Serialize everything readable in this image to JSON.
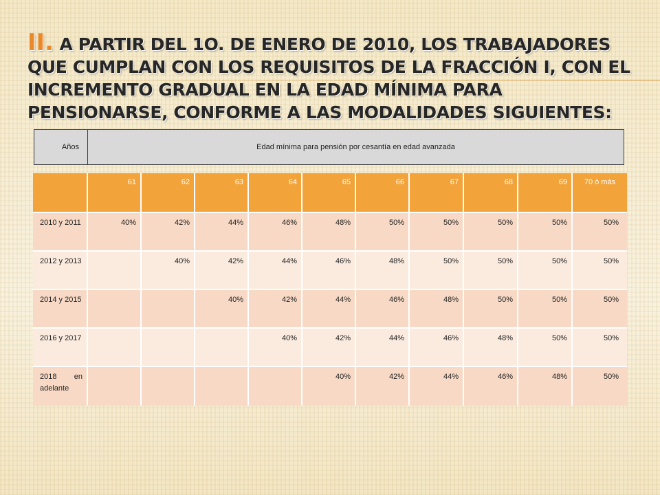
{
  "title": {
    "bullet": "II.",
    "text": "A partir del 1o. de enero de 2010, los trabajadores que cumplan con los requisitos de la fracción I, con el incremento gradual en la edad mínima para pensionarse, conforme a las modalidades siguientes:"
  },
  "header": {
    "years_label": "Años",
    "description": "Edad mínima para pensión por cesantía en edad avanzada"
  },
  "table": {
    "ages": [
      "61",
      "62",
      "63",
      "64",
      "65",
      "66",
      "67",
      "68",
      "69",
      "70 ó más"
    ],
    "rows": [
      {
        "period": "2010 y 2011",
        "values": [
          "40%",
          "42%",
          "44%",
          "46%",
          "48%",
          "50%",
          "50%",
          "50%",
          "50%",
          "50%"
        ]
      },
      {
        "period": "2012 y 2013",
        "values": [
          "",
          "40%",
          "42%",
          "44%",
          "46%",
          "48%",
          "50%",
          "50%",
          "50%",
          "50%"
        ]
      },
      {
        "period": "2014 y 2015",
        "values": [
          "",
          "",
          "40%",
          "42%",
          "44%",
          "46%",
          "48%",
          "50%",
          "50%",
          "50%"
        ]
      },
      {
        "period": "2016 y 2017",
        "values": [
          "",
          "",
          "",
          "40%",
          "42%",
          "44%",
          "46%",
          "48%",
          "50%",
          "50%"
        ]
      },
      {
        "period": "2018 en adelante",
        "values": [
          "",
          "",
          "",
          "",
          "40%",
          "42%",
          "44%",
          "46%",
          "48%",
          "50%"
        ]
      }
    ]
  },
  "colors": {
    "accent": "#f2a33a",
    "row_odd": "#f7d9c5",
    "row_even": "#fbebdf",
    "header_box": "#d9d9d9"
  }
}
